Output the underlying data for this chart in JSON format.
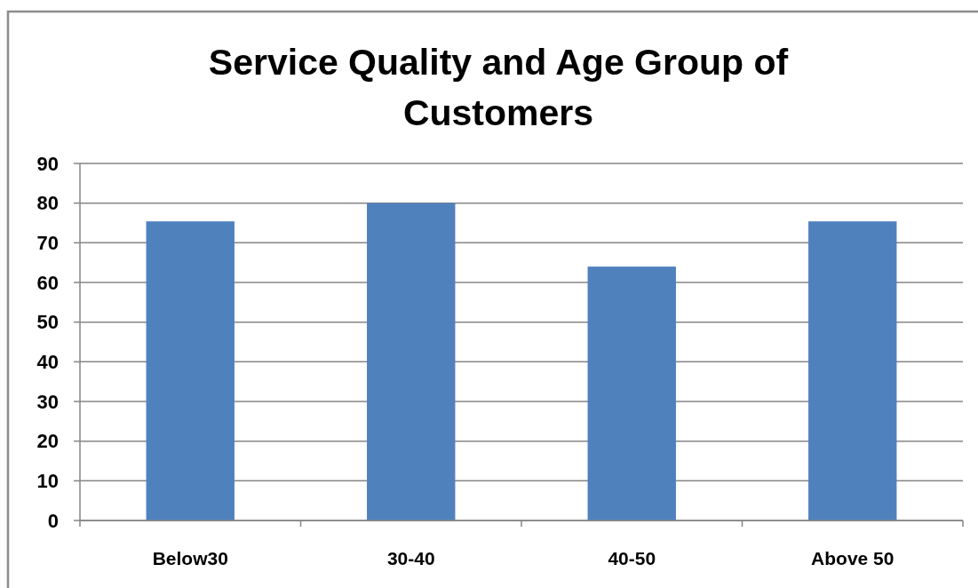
{
  "chart_data": {
    "type": "bar",
    "title": "Service Quality and Age Group of Customers",
    "categories": [
      "Below30",
      "30-40",
      "40-50",
      "Above 50"
    ],
    "values": [
      75.4,
      80,
      64,
      75.4
    ],
    "color": "#4f81bd",
    "ylim": [
      0,
      90
    ],
    "yticks": [
      0,
      10,
      20,
      30,
      40,
      50,
      60,
      70,
      80,
      90
    ],
    "grid": "y"
  }
}
